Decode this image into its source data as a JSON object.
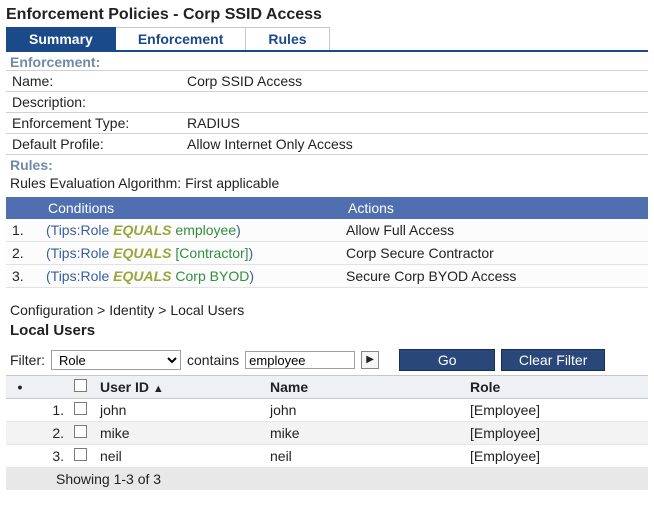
{
  "page_title": "Enforcement Policies - Corp SSID Access",
  "tabs": [
    {
      "label": "Summary",
      "active": true
    },
    {
      "label": "Enforcement",
      "active": false
    },
    {
      "label": "Rules",
      "active": false
    }
  ],
  "enforcement": {
    "section_label": "Enforcement:",
    "fields": {
      "name_label": "Name:",
      "name_value": "Corp SSID Access",
      "description_label": "Description:",
      "description_value": "",
      "type_label": "Enforcement Type:",
      "type_value": "RADIUS",
      "default_profile_label": "Default Profile:",
      "default_profile_value": "Allow Internet Only Access"
    }
  },
  "rules_section": {
    "section_label": "Rules:",
    "algo_label": "Rules Evaluation Algorithm: First applicable",
    "columns": {
      "conditions": "Conditions",
      "actions": "Actions"
    },
    "rows": [
      {
        "num": "1.",
        "prefix": "(Tips:Role",
        "op": "EQUALS",
        "val": "employee",
        "val_color": "green",
        "suffix": ")",
        "action": "Allow Full Access"
      },
      {
        "num": "2.",
        "prefix": "(Tips:Role",
        "op": "EQUALS",
        "val": "[Contractor]",
        "val_color": "green",
        "suffix": ")",
        "action": "Corp Secure Contractor"
      },
      {
        "num": "3.",
        "prefix": "(Tips:Role",
        "op": "EQUALS",
        "val": "Corp BYOD",
        "val_color": "green",
        "suffix": ")",
        "action": "Secure Corp BYOD Access"
      }
    ]
  },
  "breadcrumb": "Configuration > Identity > Local Users",
  "local_users": {
    "heading": "Local Users",
    "filter": {
      "label": "Filter:",
      "field_selected": "Role",
      "match_label": "contains",
      "value": "employee",
      "go_label": "Go",
      "clear_label": "Clear Filter"
    },
    "columns": {
      "dot": "•",
      "userid": "User ID",
      "sort_icon": "▲",
      "name": "Name",
      "role": "Role"
    },
    "rows": [
      {
        "num": "1.",
        "userid": "john",
        "name": "john",
        "role": "[Employee]"
      },
      {
        "num": "2.",
        "userid": "mike",
        "name": "mike",
        "role": "[Employee]"
      },
      {
        "num": "3.",
        "userid": "neil",
        "name": "neil",
        "role": "[Employee]"
      }
    ],
    "footer": "Showing 1-3 of 3"
  }
}
